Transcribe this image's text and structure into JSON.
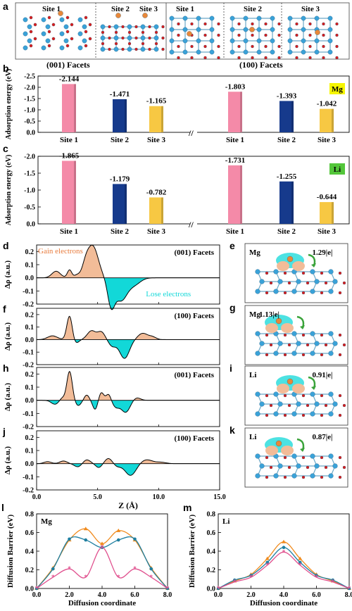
{
  "panel_letters": [
    "a",
    "b",
    "c",
    "d",
    "e",
    "f",
    "g",
    "h",
    "i",
    "j",
    "k",
    "l",
    "m"
  ],
  "panel_a": {
    "sites_001": [
      "Site 1",
      "Site 2",
      "Site 3"
    ],
    "sites_100": [
      "Site 1",
      "Site 2",
      "Site 3"
    ],
    "facet_001_label": "(001) Facets",
    "facet_100_label": "(100) Facets"
  },
  "colors": {
    "site1": "#f48aa8",
    "site2": "#163a8c",
    "site3": "#f7c843",
    "gain_fill": "#f2bc98",
    "lose_fill": "#12d8d8",
    "mg_badge": "#f5f500",
    "li_badge": "#53c63a",
    "atom_blue": "#3aa2d8",
    "atom_red": "#d81e1e",
    "atom_orange": "#e8883a",
    "line_orange": "#f08a1c",
    "line_teal": "#1f7fa0",
    "line_pink": "#e0508e"
  },
  "chart_data": [
    {
      "panel": "b",
      "type": "bar",
      "badge": "Mg",
      "ylabel": "Adsorption energy (eV)",
      "ylim": [
        0,
        -2.5
      ],
      "yticks": [
        "0.0",
        "-0.5",
        "-1.0",
        "-1.5",
        "-2.0",
        "-2.5"
      ],
      "groups": [
        {
          "categories": [
            "Site 1",
            "Site 2",
            "Site 3"
          ],
          "values": [
            -2.144,
            -1.471,
            -1.165
          ],
          "labels": [
            "-2.144",
            "-1.471",
            "-1.165"
          ]
        },
        {
          "categories": [
            "Site 1",
            "Site 2",
            "Site 3"
          ],
          "values": [
            -1.803,
            -1.393,
            -1.042
          ],
          "labels": [
            "-1.803",
            "-1.393",
            "-1.042"
          ]
        }
      ]
    },
    {
      "panel": "c",
      "type": "bar",
      "badge": "Li",
      "ylabel": "Adsorption energy (eV)",
      "ylim": [
        0,
        -2.0
      ],
      "yticks": [
        "0.0",
        "-0.5",
        "-1.0",
        "-1.5",
        "-2.0"
      ],
      "groups": [
        {
          "categories": [
            "Site 1",
            "Site 2",
            "Site 3"
          ],
          "values": [
            -1.865,
            -1.179,
            -0.782
          ],
          "labels": [
            "-1.865",
            "-1.179",
            "-0.782"
          ]
        },
        {
          "categories": [
            "Site 1",
            "Site 2",
            "Site 3"
          ],
          "values": [
            -1.731,
            -1.255,
            -0.644
          ],
          "labels": [
            "-1.731",
            "-1.255",
            "-0.644"
          ]
        }
      ]
    },
    {
      "panel": "d",
      "type": "area",
      "facet": "(001) Facets",
      "annotations": [
        "Gain electrons",
        "Lose electrons"
      ],
      "ylabel": "Δρ (a.u.)",
      "ylim": [
        -0.2,
        0.25
      ],
      "yticks": [
        "0.2",
        "0.1",
        "0.0",
        "-0.1",
        "-0.2"
      ],
      "peaks": [
        [
          1.6,
          0.05,
          0.35
        ],
        [
          2.7,
          0.06,
          0.18
        ],
        [
          3.3,
          0.02,
          0.22
        ],
        [
          4.0,
          0.07,
          0.28
        ],
        [
          4.6,
          0.24,
          0.45
        ],
        [
          6.1,
          -0.19,
          0.28
        ],
        [
          6.9,
          -0.17,
          0.5
        ],
        [
          8.0,
          -0.05,
          0.5
        ]
      ]
    },
    {
      "panel": "f",
      "type": "area",
      "facet": "(100) Facets",
      "ylabel": "Δρ (a.u.)",
      "ylim": [
        -0.2,
        0.25
      ],
      "yticks": [
        "0.2",
        "0.1",
        "0.0",
        "-0.1",
        "-0.2"
      ],
      "peaks": [
        [
          1.3,
          0.03,
          0.4
        ],
        [
          2.7,
          0.19,
          0.22
        ],
        [
          3.2,
          -0.03,
          0.25
        ],
        [
          4.5,
          0.07,
          0.35
        ],
        [
          5.3,
          0.06,
          0.3
        ],
        [
          6.2,
          -0.05,
          0.3
        ],
        [
          7.2,
          -0.15,
          0.4
        ],
        [
          8.7,
          0.05,
          0.4
        ],
        [
          9.5,
          0.02,
          0.3
        ]
      ]
    },
    {
      "panel": "h",
      "type": "area",
      "facet": "(001) Facets",
      "ylabel": "Δρ (a.u.)",
      "ylim": [
        -0.2,
        0.25
      ],
      "yticks": [
        "0.2",
        "0.1",
        "0.0",
        "-0.1",
        "-0.2"
      ],
      "peaks": [
        [
          1.5,
          -0.03,
          0.3
        ],
        [
          2.1,
          0.02,
          0.2
        ],
        [
          2.7,
          0.22,
          0.22
        ],
        [
          3.4,
          -0.04,
          0.25
        ],
        [
          4.1,
          0.04,
          0.2
        ],
        [
          4.8,
          -0.07,
          0.2
        ],
        [
          5.3,
          0.06,
          0.2
        ],
        [
          5.9,
          0.05,
          0.2
        ],
        [
          6.5,
          -0.05,
          0.3
        ],
        [
          7.3,
          -0.09,
          0.35
        ],
        [
          8.2,
          0.02,
          0.3
        ]
      ]
    },
    {
      "panel": "j",
      "type": "area",
      "facet": "(100) Facets",
      "ylabel": "Δρ (a.u.)",
      "xlabel": "Z (Å)",
      "xlim": [
        0,
        15
      ],
      "xticks": [
        "0.0",
        "5.0",
        "10.0",
        "15.0"
      ],
      "ylim": [
        -0.2,
        0.25
      ],
      "yticks": [
        "0.2",
        "0.1",
        "0.0",
        "-0.1",
        "-0.2"
      ],
      "peaks": [
        [
          0.9,
          0.015,
          0.3
        ],
        [
          2.2,
          0.02,
          0.3
        ],
        [
          3.4,
          -0.025,
          0.3
        ],
        [
          4.1,
          0.03,
          0.3
        ],
        [
          5.1,
          -0.03,
          0.25
        ],
        [
          5.9,
          0.04,
          0.3
        ],
        [
          6.6,
          -0.02,
          0.3
        ],
        [
          7.7,
          -0.09,
          0.45
        ],
        [
          9.0,
          0.03,
          0.5
        ],
        [
          10.2,
          0.01,
          0.4
        ]
      ]
    },
    {
      "panel": "l",
      "type": "line",
      "badge": "Mg",
      "xlabel": "Diffusion coordinate",
      "ylabel": "Diffusion Barrier (eV)",
      "xlim": [
        0,
        8
      ],
      "ylim": [
        0,
        0.8
      ],
      "xticks": [
        "0.0",
        "2.0",
        "4.0",
        "6.0",
        "8.0"
      ],
      "yticks": [
        "0.0",
        "0.2",
        "0.4",
        "0.6",
        "0.8"
      ],
      "series": [
        {
          "color": "orange",
          "x": [
            0,
            1,
            2,
            3,
            4,
            5,
            6,
            7,
            8
          ],
          "y": [
            0,
            0.22,
            0.52,
            0.64,
            0.48,
            0.62,
            0.52,
            0.22,
            0
          ]
        },
        {
          "color": "teal",
          "x": [
            0,
            1,
            2,
            3,
            4,
            5,
            6,
            7,
            8
          ],
          "y": [
            0,
            0.21,
            0.53,
            0.52,
            0.44,
            0.52,
            0.53,
            0.21,
            0
          ]
        },
        {
          "color": "pink",
          "x": [
            0,
            1,
            2,
            3,
            4,
            5,
            6,
            7,
            8
          ],
          "y": [
            0,
            0.12,
            0.21,
            0.12,
            0.44,
            0.12,
            0.21,
            0.12,
            0
          ]
        }
      ]
    },
    {
      "panel": "m",
      "type": "line",
      "badge": "Li",
      "xlabel": "Diffusion coordinate",
      "ylabel": "Diffusion Barrier (eV)",
      "xlim": [
        0,
        8
      ],
      "ylim": [
        0,
        0.8
      ],
      "xticks": [
        "0.0",
        "2.0",
        "4.0",
        "6.0",
        "8.0"
      ],
      "yticks": [
        "0.0",
        "0.2",
        "0.4",
        "0.6",
        "0.8"
      ],
      "series": [
        {
          "color": "orange",
          "x": [
            0,
            1,
            2,
            3,
            4,
            5,
            6,
            7,
            8
          ],
          "y": [
            0,
            0.08,
            0.15,
            0.32,
            0.5,
            0.32,
            0.15,
            0.08,
            0
          ]
        },
        {
          "color": "teal",
          "x": [
            0,
            1,
            2,
            3,
            4,
            5,
            6,
            7,
            8
          ],
          "y": [
            0,
            0.09,
            0.14,
            0.28,
            0.44,
            0.28,
            0.14,
            0.09,
            0
          ]
        },
        {
          "color": "pink",
          "x": [
            0,
            1,
            2,
            3,
            4,
            5,
            6,
            7,
            8
          ],
          "y": [
            0,
            0.07,
            0.12,
            0.25,
            0.39,
            0.25,
            0.12,
            0.07,
            0
          ]
        }
      ]
    }
  ],
  "charge_panels": [
    {
      "panel": "e",
      "element": "Mg",
      "charge": "1.29|e|"
    },
    {
      "panel": "g",
      "element": "Mg",
      "charge": "1.13|e|"
    },
    {
      "panel": "i",
      "element": "Li",
      "charge": "0.91|e|"
    },
    {
      "panel": "k",
      "element": "Li",
      "charge": "0.87|e|"
    }
  ]
}
